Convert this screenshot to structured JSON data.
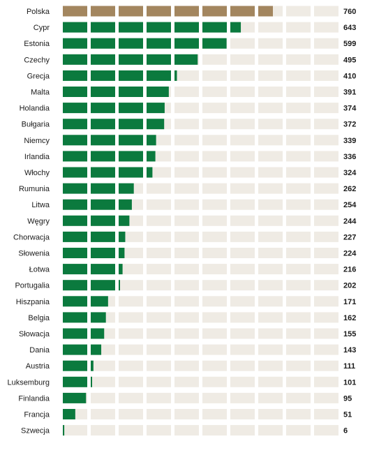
{
  "chart_data": {
    "type": "bar",
    "orientation": "horizontal",
    "title": "",
    "xlabel": "",
    "ylabel": "",
    "xlim": [
      0,
      1000
    ],
    "segment_size": 100,
    "grid": false,
    "categories": [
      "Polska",
      "Cypr",
      "Estonia",
      "Czechy",
      "Grecja",
      "Malta",
      "Holandia",
      "Bułgaria",
      "Niemcy",
      "Irlandia",
      "Włochy",
      "Rumunia",
      "Litwa",
      "Węgry",
      "Chorwacja",
      "Słowenia",
      "Łotwa",
      "Portugalia",
      "Hiszpania",
      "Belgia",
      "Słowacja",
      "Dania",
      "Austria",
      "Luksemburg",
      "Finlandia",
      "Francja",
      "Szwecja"
    ],
    "values": [
      760,
      643,
      599,
      495,
      410,
      391,
      374,
      372,
      339,
      336,
      324,
      262,
      254,
      244,
      227,
      224,
      216,
      202,
      171,
      162,
      155,
      143,
      111,
      101,
      95,
      51,
      6
    ],
    "highlight_category": "Polska",
    "colors": {
      "highlight": "#a3865f",
      "default": "#0b7a3e",
      "track": "#efebe4",
      "text": "#1a1a1a"
    }
  }
}
